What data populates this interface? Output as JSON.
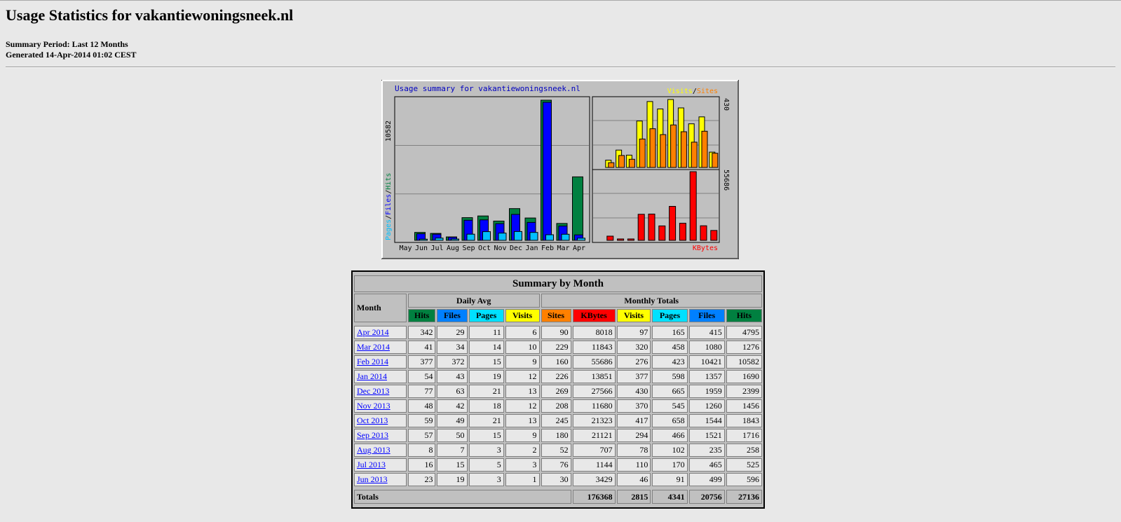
{
  "page": {
    "title": "Usage Statistics for vakantiewoningsneek.nl",
    "summary_period": "Summary Period: Last 12 Months",
    "generated": "Generated 14-Apr-2014 01:02 CEST"
  },
  "chart_data": {
    "type": "bar",
    "title": "Usage summary for vakantiewoningsneek.nl",
    "categories": [
      "May",
      "Jun",
      "Jul",
      "Aug",
      "Sep",
      "Oct",
      "Nov",
      "Dec",
      "Jan",
      "Feb",
      "Mar",
      "Apr"
    ],
    "left_panel": {
      "label_parts": [
        "Pages",
        "/",
        "Files",
        "/",
        "Hits"
      ],
      "max_label": "10582",
      "ymax": 10582,
      "series": [
        {
          "name": "Hits",
          "color": "#008040",
          "values": [
            0,
            596,
            525,
            258,
            1716,
            1843,
            1456,
            2399,
            1690,
            10582,
            1276,
            4795
          ]
        },
        {
          "name": "Files",
          "color": "#0000ff",
          "values": [
            0,
            499,
            465,
            235,
            1521,
            1544,
            1260,
            1959,
            1357,
            10421,
            1080,
            415
          ]
        },
        {
          "name": "Pages",
          "color": "#00c0ff",
          "values": [
            0,
            91,
            170,
            102,
            466,
            658,
            545,
            665,
            598,
            423,
            458,
            165
          ]
        }
      ]
    },
    "visits_panel": {
      "legend": [
        "Visits",
        "/",
        "Sites"
      ],
      "max_label": "430",
      "ymax": 430,
      "series": [
        {
          "name": "Visits",
          "color": "#ffff00",
          "values": [
            0,
            46,
            110,
            78,
            294,
            417,
            370,
            430,
            377,
            276,
            320,
            97
          ]
        },
        {
          "name": "Sites",
          "color": "#ff8000",
          "values": [
            0,
            30,
            76,
            52,
            180,
            245,
            208,
            269,
            226,
            160,
            229,
            90
          ]
        }
      ]
    },
    "kbytes_panel": {
      "label": "KBytes",
      "max_label": "55686",
      "ymax": 55686,
      "series": [
        {
          "name": "KBytes",
          "color": "#ff0000",
          "values": [
            0,
            3429,
            1144,
            707,
            21121,
            21323,
            11680,
            27566,
            13851,
            55686,
            11843,
            8018
          ]
        }
      ]
    }
  },
  "table": {
    "title": "Summary by Month",
    "month_header": "Month",
    "daily_avg_header": "Daily Avg",
    "monthly_totals_header": "Monthly Totals",
    "daily_cols": [
      "Hits",
      "Files",
      "Pages",
      "Visits"
    ],
    "monthly_cols": [
      "Sites",
      "KBytes",
      "Visits",
      "Pages",
      "Files",
      "Hits"
    ],
    "rows": [
      {
        "month": "Apr 2014",
        "d": [
          "342",
          "29",
          "11",
          "6"
        ],
        "m": [
          "90",
          "8018",
          "97",
          "165",
          "415",
          "4795"
        ]
      },
      {
        "month": "Mar 2014",
        "d": [
          "41",
          "34",
          "14",
          "10"
        ],
        "m": [
          "229",
          "11843",
          "320",
          "458",
          "1080",
          "1276"
        ]
      },
      {
        "month": "Feb 2014",
        "d": [
          "377",
          "372",
          "15",
          "9"
        ],
        "m": [
          "160",
          "55686",
          "276",
          "423",
          "10421",
          "10582"
        ]
      },
      {
        "month": "Jan 2014",
        "d": [
          "54",
          "43",
          "19",
          "12"
        ],
        "m": [
          "226",
          "13851",
          "377",
          "598",
          "1357",
          "1690"
        ]
      },
      {
        "month": "Dec 2013",
        "d": [
          "77",
          "63",
          "21",
          "13"
        ],
        "m": [
          "269",
          "27566",
          "430",
          "665",
          "1959",
          "2399"
        ]
      },
      {
        "month": "Nov 2013",
        "d": [
          "48",
          "42",
          "18",
          "12"
        ],
        "m": [
          "208",
          "11680",
          "370",
          "545",
          "1260",
          "1456"
        ]
      },
      {
        "month": "Oct 2013",
        "d": [
          "59",
          "49",
          "21",
          "13"
        ],
        "m": [
          "245",
          "21323",
          "417",
          "658",
          "1544",
          "1843"
        ]
      },
      {
        "month": "Sep 2013",
        "d": [
          "57",
          "50",
          "15",
          "9"
        ],
        "m": [
          "180",
          "21121",
          "294",
          "466",
          "1521",
          "1716"
        ]
      },
      {
        "month": "Aug 2013",
        "d": [
          "8",
          "7",
          "3",
          "2"
        ],
        "m": [
          "52",
          "707",
          "78",
          "102",
          "235",
          "258"
        ]
      },
      {
        "month": "Jul 2013",
        "d": [
          "16",
          "15",
          "5",
          "3"
        ],
        "m": [
          "76",
          "1144",
          "110",
          "170",
          "465",
          "525"
        ]
      },
      {
        "month": "Jun 2013",
        "d": [
          "23",
          "19",
          "3",
          "1"
        ],
        "m": [
          "30",
          "3429",
          "46",
          "91",
          "499",
          "596"
        ]
      }
    ],
    "totals": {
      "label": "Totals",
      "values": [
        "176368",
        "2815",
        "4341",
        "20756",
        "27136"
      ]
    }
  }
}
